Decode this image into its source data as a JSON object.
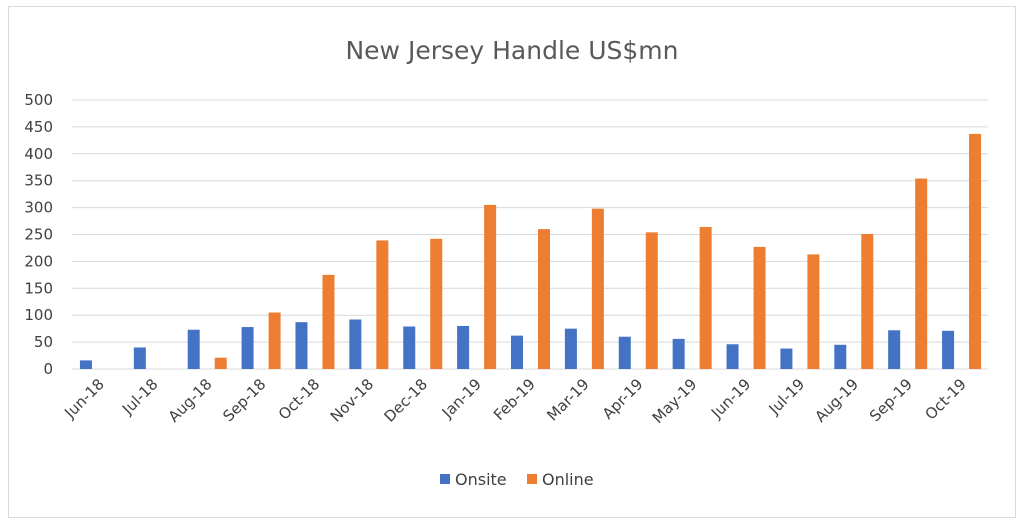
{
  "chart_data": {
    "type": "bar",
    "title": "New Jersey Handle US$mn",
    "xlabel": "",
    "ylabel": "",
    "categories": [
      "Jun-18",
      "Jul-18",
      "Aug-18",
      "Sep-18",
      "Oct-18",
      "Nov-18",
      "Dec-18",
      "Jan-19",
      "Feb-19",
      "Mar-19",
      "Apr-19",
      "May-19",
      "Jun-19",
      "Jul-19",
      "Aug-19",
      "Sep-19",
      "Oct-19"
    ],
    "series": [
      {
        "name": "Onsite",
        "color": "#4472c4",
        "values": [
          16,
          40,
          73,
          78,
          87,
          92,
          79,
          80,
          62,
          75,
          60,
          56,
          46,
          38,
          45,
          72,
          71
        ]
      },
      {
        "name": "Online",
        "color": "#ed7d31",
        "values": [
          0,
          0,
          21,
          105,
          175,
          239,
          242,
          305,
          260,
          298,
          254,
          264,
          227,
          213,
          251,
          354,
          437
        ]
      }
    ],
    "ylim": [
      0,
      500
    ],
    "yticks": [
      0,
      50,
      100,
      150,
      200,
      250,
      300,
      350,
      400,
      450,
      500
    ],
    "grid": true,
    "legend_position": "bottom"
  }
}
